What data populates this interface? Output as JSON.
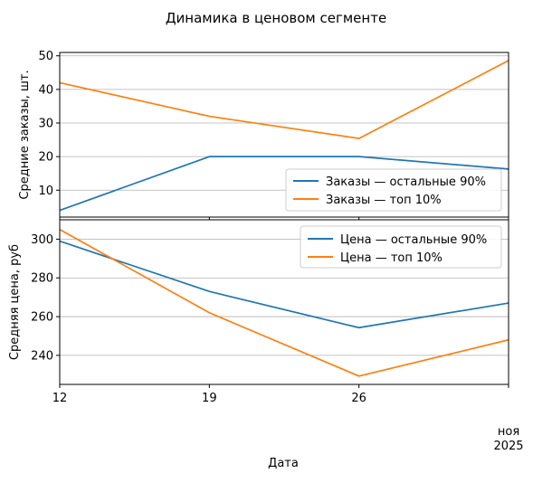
{
  "chart_data": {
    "type": "line",
    "title": "Динамика в ценовом сегменте",
    "xlabel": "Дата",
    "x_ticks": [
      "12",
      "19",
      "26"
    ],
    "x_month_label": "ноя",
    "x_year_label": "2025",
    "x_dates": [
      "2025-11-12",
      "2025-11-19",
      "2025-11-26",
      "2025-12-03"
    ],
    "grid": true,
    "colors": {
      "blue": "#1f77b4",
      "orange": "#ff7f0e"
    },
    "panels": [
      {
        "ylabel": "Средние заказы, шт.",
        "ylim": [
          2,
          51
        ],
        "yticks": [
          10,
          20,
          30,
          40,
          50
        ],
        "legend_position": "lower-right",
        "series": [
          {
            "name": "Заказы — остальные 90%",
            "color": "#1f77b4",
            "values": [
              4,
              20,
              20,
              16.3
            ]
          },
          {
            "name": "Заказы — топ 10%",
            "color": "#ff7f0e",
            "values": [
              42,
              32,
              25.4,
              48.6
            ]
          }
        ]
      },
      {
        "ylabel": "Средняя цена, руб",
        "ylim": [
          225,
          310
        ],
        "yticks": [
          240,
          260,
          280,
          300
        ],
        "legend_position": "top-right",
        "series": [
          {
            "name": "Цена — остальные 90%",
            "color": "#1f77b4",
            "values": [
              299,
              273,
              254.3,
              267
            ]
          },
          {
            "name": "Цена — топ 10%",
            "color": "#ff7f0e",
            "values": [
              305,
              262,
              229.3,
              248
            ]
          }
        ]
      }
    ]
  }
}
